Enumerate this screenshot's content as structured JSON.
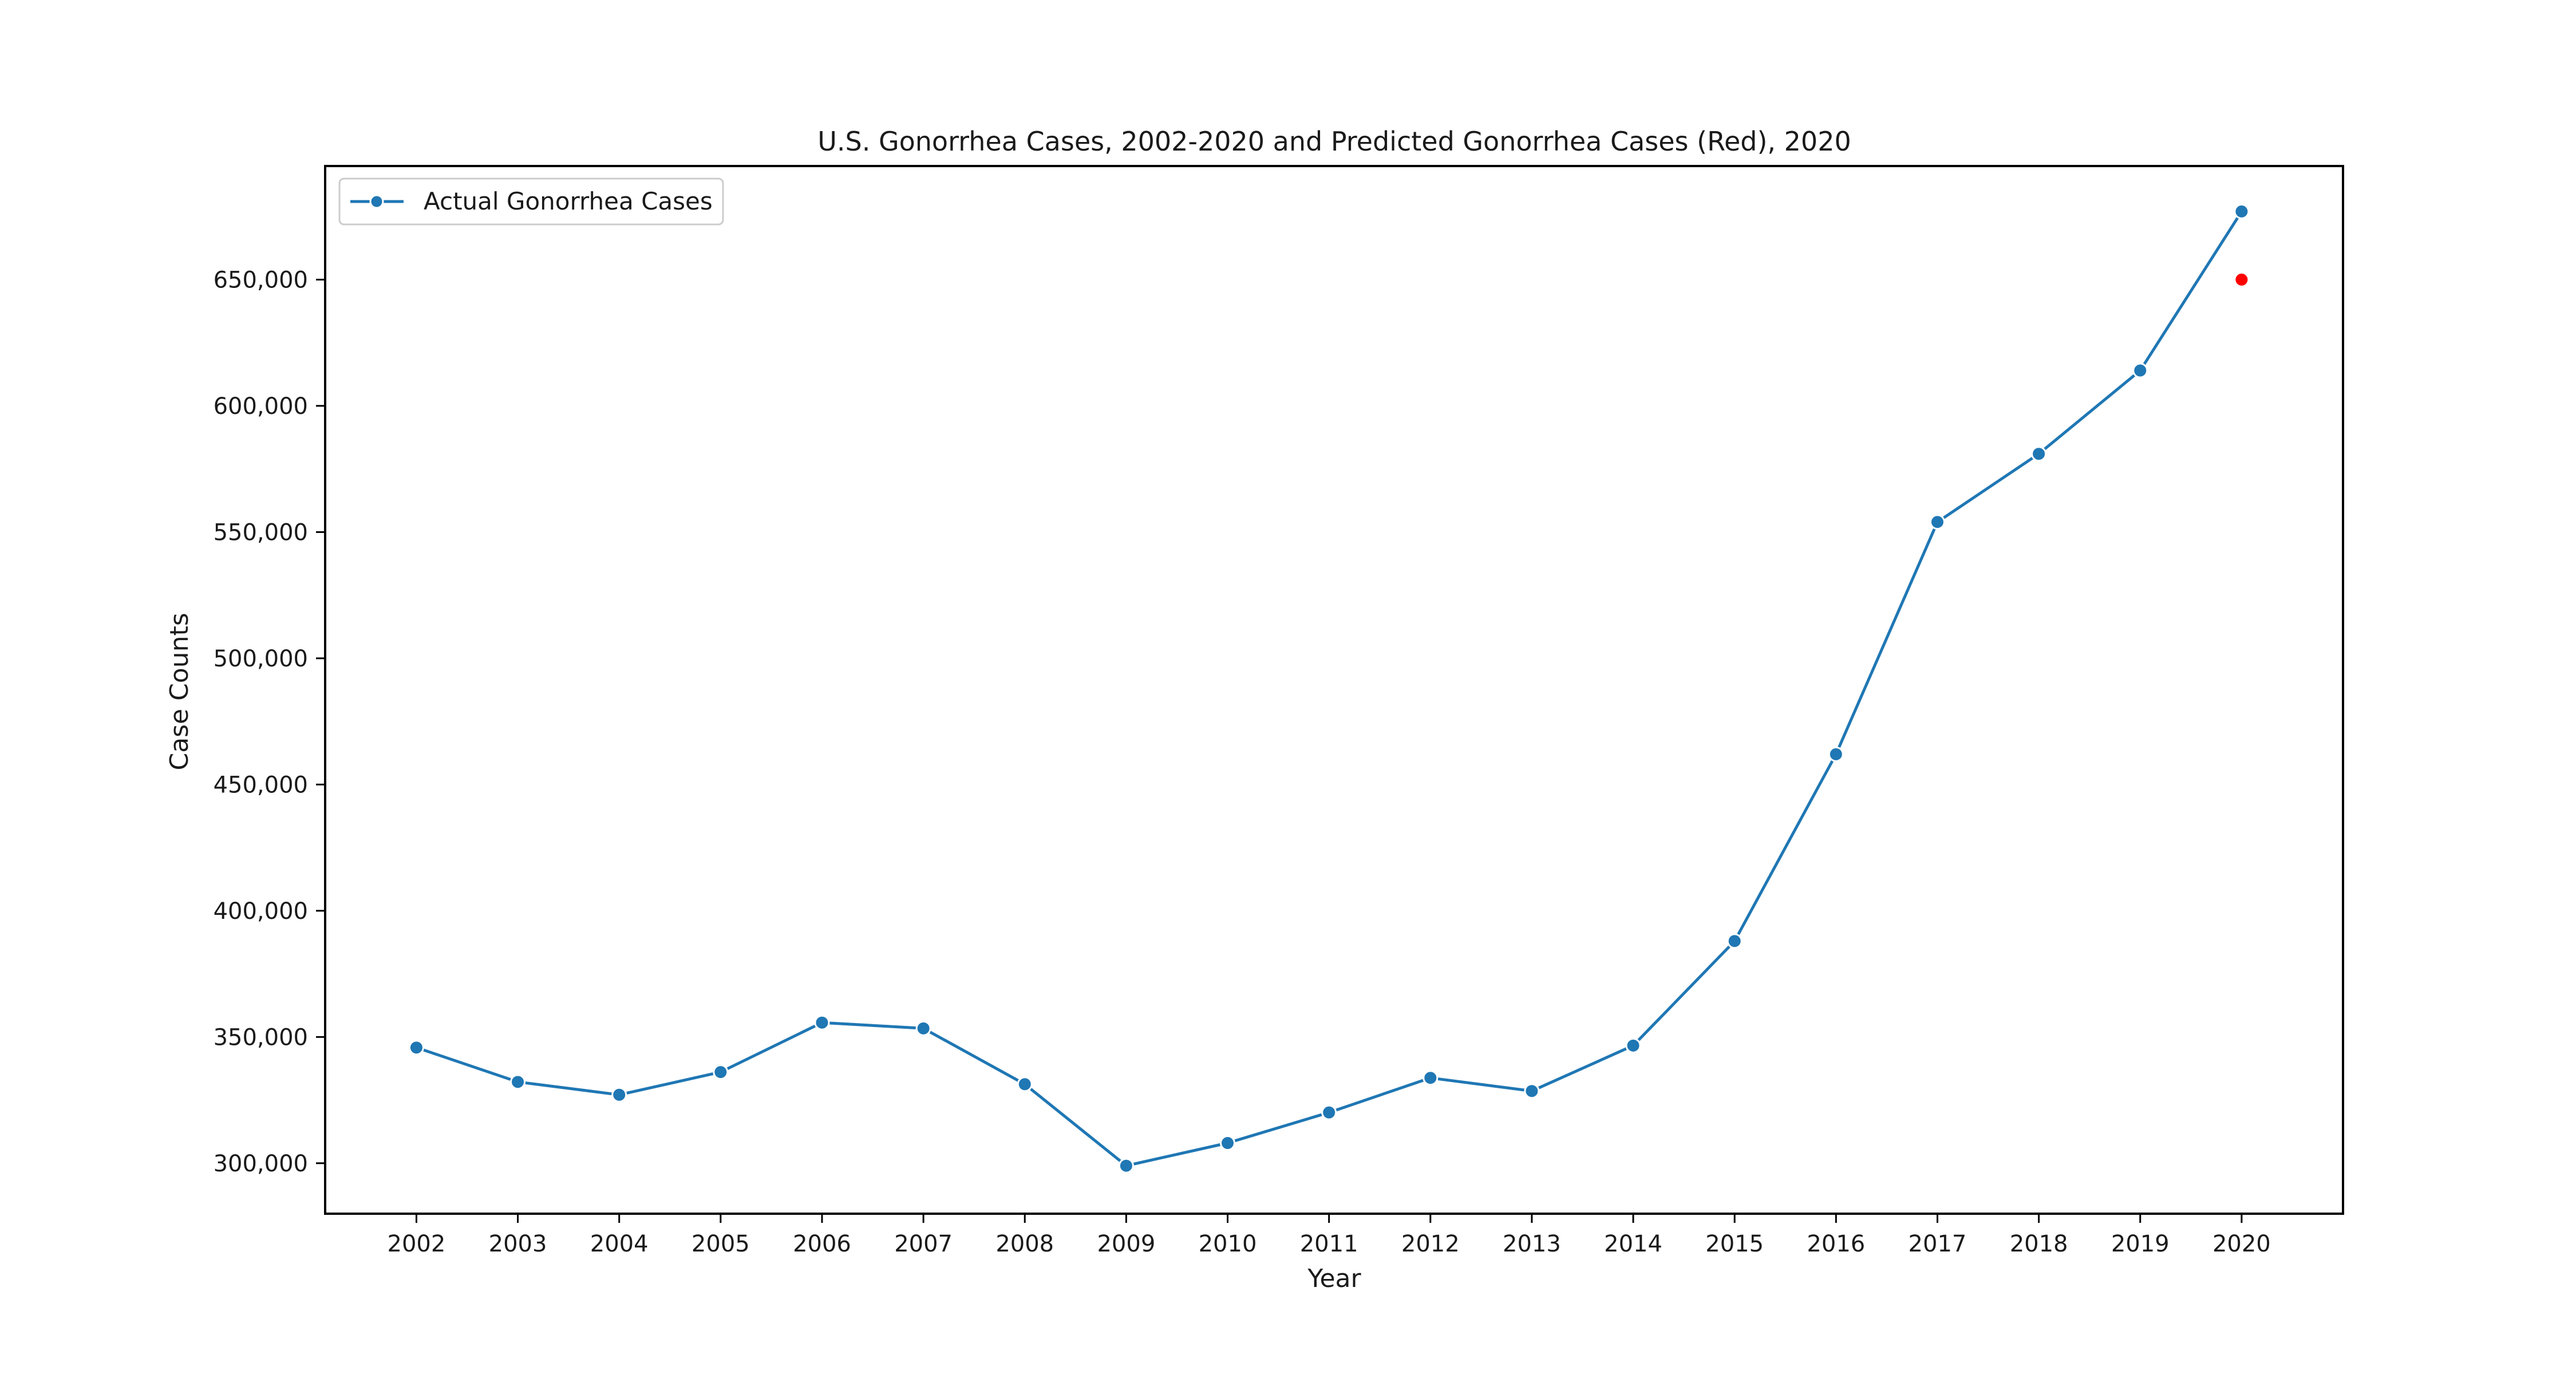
{
  "chart_data": {
    "type": "line",
    "title": "U.S. Gonorrhea Cases, 2002-2020 and Predicted Gonorrhea Cases (Red), 2020",
    "xlabel": "Year",
    "ylabel": "Case Counts",
    "x": [
      2002,
      2003,
      2004,
      2005,
      2006,
      2007,
      2008,
      2009,
      2010,
      2011,
      2012,
      2013,
      2014,
      2015,
      2016,
      2017,
      2018,
      2019,
      2020
    ],
    "series": [
      {
        "name": "Actual Gonorrhea Cases",
        "color": "#1f77b4",
        "values": [
          345800,
          332200,
          327100,
          336100,
          355700,
          353400,
          331300,
          299000,
          308000,
          320100,
          333800,
          328600,
          346600,
          388000,
          462000,
          554000,
          581000,
          614000,
          677000
        ]
      }
    ],
    "prediction": {
      "x": 2020,
      "value": 650000,
      "color": "#ff0000"
    },
    "ylim": [
      280000,
      695000
    ],
    "yticks": [
      300000,
      350000,
      400000,
      450000,
      500000,
      550000,
      600000,
      650000
    ],
    "ytick_labels": [
      "300,000",
      "350,000",
      "400,000",
      "450,000",
      "500,000",
      "550,000",
      "600,000",
      "650,000"
    ],
    "xtick_labels": [
      "2002",
      "2003",
      "2004",
      "2005",
      "2006",
      "2007",
      "2008",
      "2009",
      "2010",
      "2011",
      "2012",
      "2013",
      "2014",
      "2015",
      "2016",
      "2017",
      "2018",
      "2019",
      "2020"
    ],
    "xlim": [
      2001.1,
      2021.0
    ],
    "grid": false,
    "legend_position": "top-left"
  }
}
